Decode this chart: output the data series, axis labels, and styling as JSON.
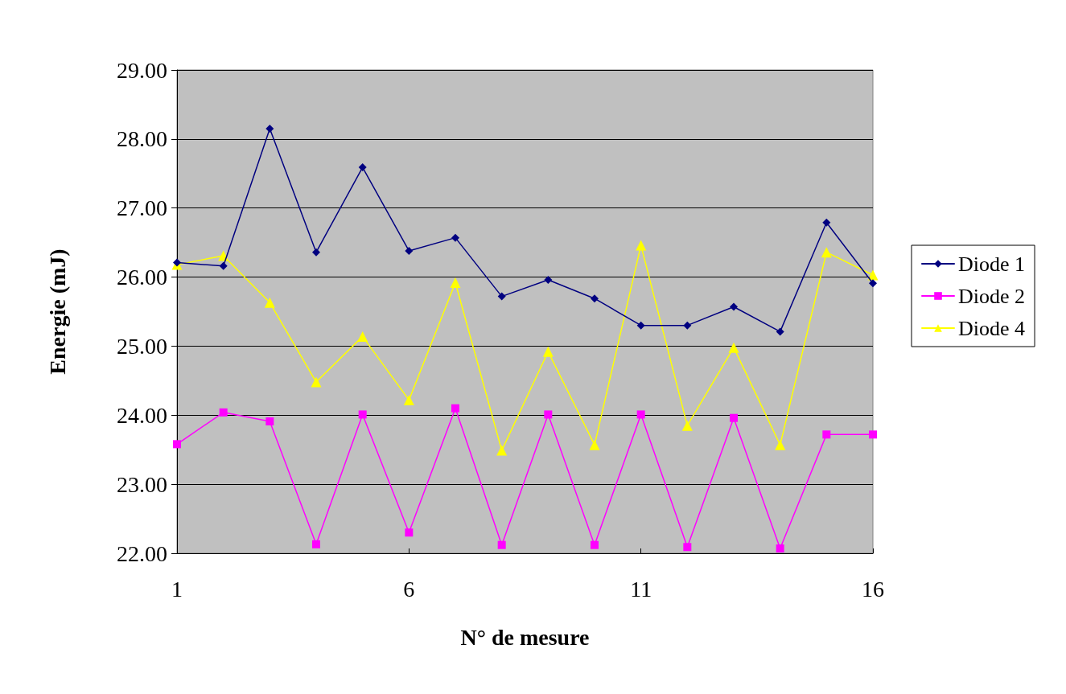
{
  "chart_data": {
    "type": "line",
    "xlabel": "N° de mesure",
    "ylabel": "Energie (mJ)",
    "x": [
      1,
      2,
      3,
      4,
      5,
      6,
      7,
      8,
      9,
      10,
      11,
      12,
      13,
      14,
      15,
      16
    ],
    "xlim": [
      1,
      16
    ],
    "xticks": [
      1,
      6,
      11,
      16
    ],
    "ylim": [
      22,
      29
    ],
    "yticks": [
      {
        "value": 22,
        "label": "22.00"
      },
      {
        "value": 23,
        "label": "23.00"
      },
      {
        "value": 24,
        "label": "24.00"
      },
      {
        "value": 25,
        "label": "25.00"
      },
      {
        "value": 26,
        "label": "26.00"
      },
      {
        "value": 27,
        "label": "27.00"
      },
      {
        "value": 28,
        "label": "28.00"
      },
      {
        "value": 29,
        "label": "29.00"
      }
    ],
    "grid": "y",
    "legend": "right",
    "line_style": "solid",
    "series": [
      {
        "name": "Diode 1",
        "color": "#000080",
        "marker": "diamond",
        "values": [
          26.21,
          26.16,
          28.15,
          26.36,
          27.59,
          26.38,
          26.57,
          25.72,
          25.96,
          25.69,
          25.3,
          25.3,
          25.57,
          25.21,
          26.79,
          25.91
        ]
      },
      {
        "name": "Diode 2",
        "color": "#ff00ff",
        "marker": "square",
        "values": [
          23.58,
          24.04,
          23.91,
          22.13,
          24.01,
          22.3,
          24.1,
          22.12,
          24.01,
          22.12,
          24.01,
          22.09,
          23.96,
          22.07,
          23.72,
          23.72
        ]
      },
      {
        "name": "Diode 4",
        "color": "#ffff00",
        "marker": "triangle",
        "values": [
          26.18,
          26.31,
          25.63,
          24.48,
          25.14,
          24.22,
          25.92,
          23.49,
          24.92,
          23.57,
          26.46,
          23.85,
          24.98,
          23.57,
          26.36,
          26.03
        ]
      }
    ]
  }
}
